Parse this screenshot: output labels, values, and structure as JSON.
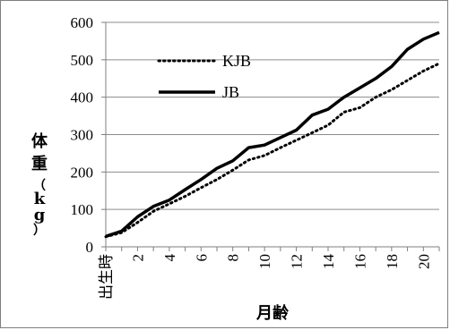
{
  "chart_data": {
    "type": "line",
    "ylabel": "体重（kg）",
    "xlabel": "月齢",
    "ylim": [
      0,
      600
    ],
    "yticks": [
      "0",
      "100",
      "200",
      "300",
      "400",
      "500",
      "600"
    ],
    "x_categories": [
      "出生時",
      "1",
      "2",
      "3",
      "4",
      "5",
      "6",
      "7",
      "8",
      "9",
      "10",
      "11",
      "12",
      "13",
      "14",
      "15",
      "16",
      "17",
      "18",
      "19",
      "20",
      "21"
    ],
    "x_tick_labels_shown": [
      "出生時",
      "2",
      "4",
      "6",
      "8",
      "10",
      "12",
      "14",
      "16",
      "18",
      "20"
    ],
    "grid": "horizontal",
    "legend_position": "top-left",
    "series": [
      {
        "name": "KJB",
        "style": "dotted",
        "color": "#000000",
        "values": [
          27,
          38,
          65,
          95,
          115,
          135,
          158,
          180,
          205,
          232,
          244,
          265,
          285,
          305,
          325,
          360,
          372,
          400,
          420,
          445,
          470,
          490
        ]
      },
      {
        "name": "JB",
        "style": "solid",
        "color": "#000000",
        "values": [
          28,
          42,
          80,
          108,
          125,
          153,
          180,
          210,
          230,
          265,
          272,
          292,
          312,
          352,
          368,
          400,
          425,
          450,
          482,
          528,
          555,
          573
        ]
      }
    ]
  }
}
